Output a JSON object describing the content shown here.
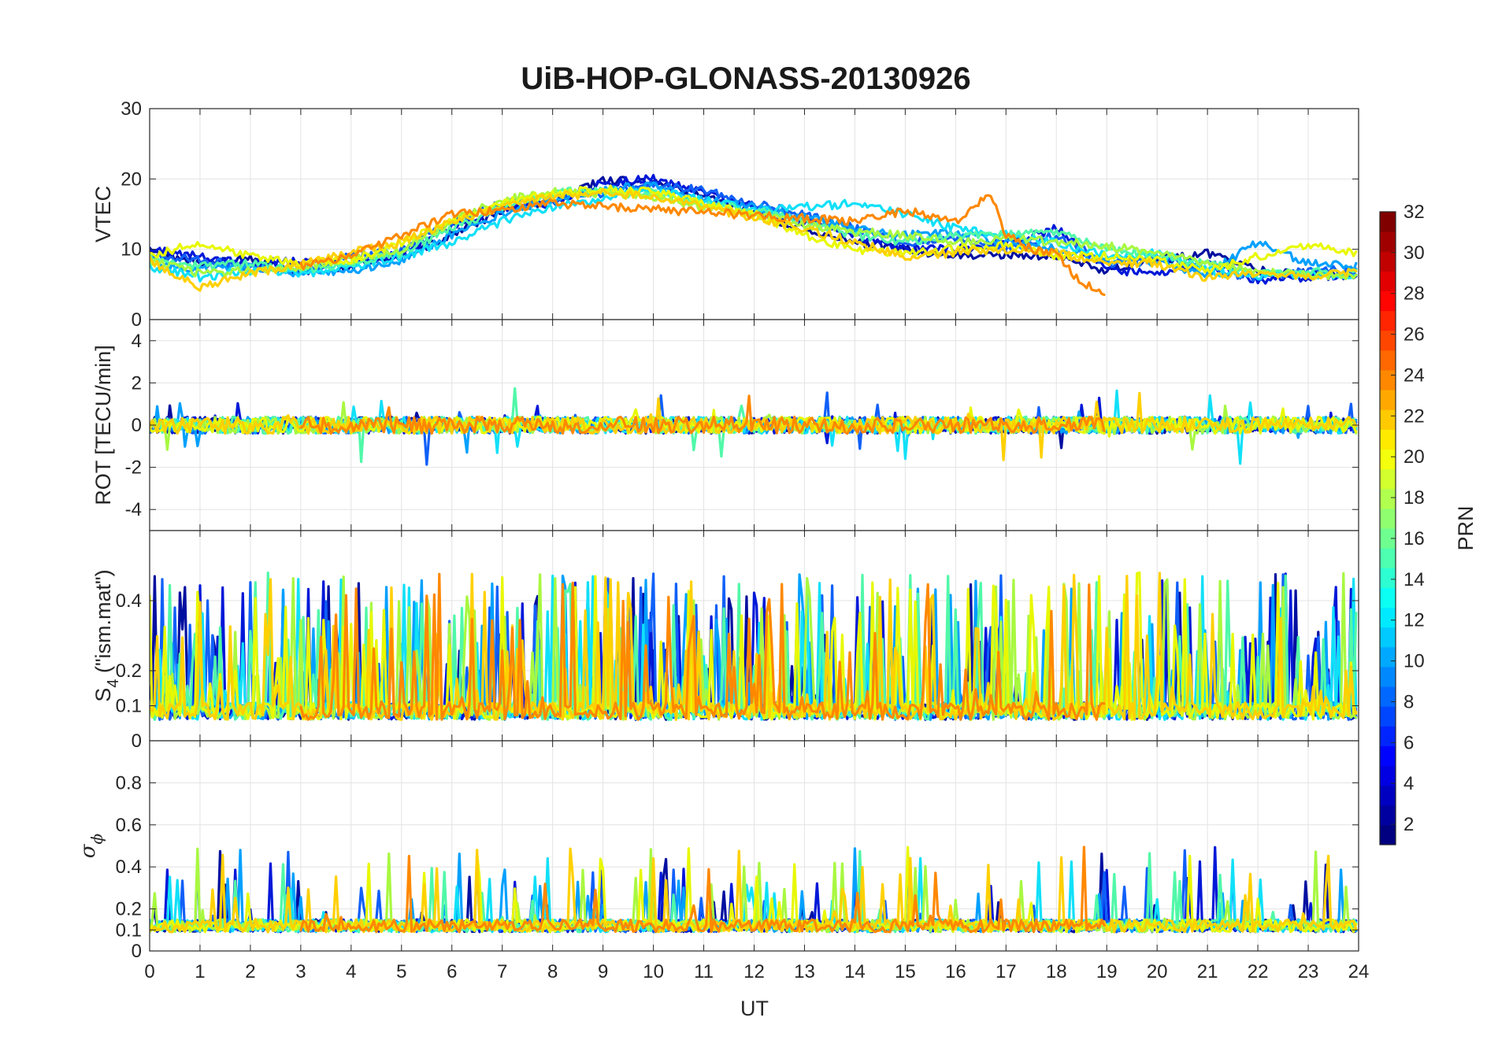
{
  "chart_data": {
    "type": "line",
    "title": "UiB-HOP-GLONASS-20130926",
    "xlabel": "UT",
    "xlim": [
      0,
      24
    ],
    "xticks": [
      0,
      1,
      2,
      3,
      4,
      5,
      6,
      7,
      8,
      9,
      10,
      11,
      12,
      13,
      14,
      15,
      16,
      17,
      18,
      19,
      20,
      21,
      22,
      23,
      24
    ],
    "grid": true,
    "panels": [
      {
        "id": "vtec",
        "ylabel": "VTEC",
        "ylim": [
          0,
          30
        ],
        "yticks": [
          0,
          10,
          20,
          30
        ]
      },
      {
        "id": "rot",
        "ylabel": "ROT [TECU/min]",
        "ylim": [
          -5,
          5
        ],
        "yticks": [
          -4,
          -2,
          0,
          2,
          4
        ]
      },
      {
        "id": "s4",
        "ylabel_main": "S",
        "ylabel_sub": "4",
        "ylabel_tail": " (\"ism.mat\")",
        "ylim": [
          0,
          0.6
        ],
        "yticks": [
          0,
          0.1,
          0.2,
          0.4
        ]
      },
      {
        "id": "sigma",
        "ylabel_main": "σ",
        "ylabel_sub": "ϕ",
        "ylim": [
          0,
          1
        ],
        "yticks": [
          0,
          0.1,
          0.2,
          0.4,
          0.6,
          0.8
        ]
      }
    ],
    "colorbar": {
      "label": "PRN",
      "range": [
        1,
        32
      ],
      "ticks": [
        2,
        4,
        6,
        8,
        10,
        12,
        14,
        16,
        18,
        20,
        22,
        24,
        26,
        28,
        30,
        32
      ],
      "colormap": "jet"
    },
    "series": [
      {
        "prn": 2,
        "color": "#000fa0",
        "vtec": [
          [
            0,
            9.5
          ],
          [
            1,
            8
          ],
          [
            2,
            8.5
          ],
          [
            3,
            7
          ],
          [
            4,
            7.5
          ],
          [
            5,
            9
          ],
          [
            6,
            12
          ],
          [
            7,
            15.5
          ],
          [
            8,
            17
          ],
          [
            9,
            19.8
          ],
          [
            10,
            19.5
          ],
          [
            11,
            17.5
          ],
          [
            12,
            15
          ],
          [
            13,
            13
          ],
          [
            14,
            11
          ],
          [
            15,
            10
          ],
          [
            16,
            9
          ],
          [
            17,
            9.2
          ],
          [
            18,
            9
          ],
          [
            19,
            7
          ],
          [
            20,
            8.5
          ],
          [
            21,
            9.5
          ],
          [
            22,
            7
          ],
          [
            23,
            6.5
          ],
          [
            24,
            6
          ]
        ]
      },
      {
        "prn": 4,
        "color": "#0018d8",
        "vtec": [
          [
            0,
            10
          ],
          [
            1,
            9
          ],
          [
            2,
            8
          ],
          [
            3,
            8.5
          ],
          [
            4,
            8
          ],
          [
            5,
            9.5
          ],
          [
            6,
            13
          ],
          [
            7,
            16
          ],
          [
            8,
            16.5
          ],
          [
            9,
            19.5
          ],
          [
            10,
            20
          ],
          [
            11,
            18
          ],
          [
            12,
            16
          ],
          [
            13,
            14
          ],
          [
            14,
            12
          ],
          [
            15,
            10
          ],
          [
            16,
            10
          ],
          [
            17,
            11
          ],
          [
            18,
            13
          ],
          [
            19,
            7
          ],
          [
            20,
            6.5
          ],
          [
            21,
            8
          ],
          [
            22,
            5.5
          ],
          [
            23,
            6
          ],
          [
            24,
            6.5
          ]
        ]
      },
      {
        "prn": 7,
        "color": "#1060f8",
        "vtec": [
          [
            0,
            9
          ],
          [
            1,
            8.5
          ],
          [
            2,
            7.5
          ],
          [
            3,
            7
          ],
          [
            4,
            9
          ],
          [
            5,
            10
          ],
          [
            6,
            14
          ],
          [
            7,
            16.5
          ],
          [
            8,
            17.5
          ],
          [
            9,
            18
          ],
          [
            10,
            19
          ],
          [
            11,
            18.5
          ],
          [
            12,
            16.5
          ],
          [
            13,
            15
          ],
          [
            14,
            13
          ],
          [
            15,
            11
          ],
          [
            16,
            11.5
          ],
          [
            17,
            10
          ],
          [
            18,
            12
          ],
          [
            19,
            8
          ],
          [
            20,
            9
          ],
          [
            21,
            7
          ],
          [
            22,
            6
          ],
          [
            23,
            7
          ],
          [
            24,
            7
          ]
        ]
      },
      {
        "prn": 10,
        "color": "#00a0ff",
        "vtec": [
          [
            0,
            8
          ],
          [
            1,
            7
          ],
          [
            2,
            7.5
          ],
          [
            3,
            6.5
          ],
          [
            4,
            7
          ],
          [
            5,
            8.5
          ],
          [
            6,
            12
          ],
          [
            7,
            15
          ],
          [
            8,
            17
          ],
          [
            9,
            18.5
          ],
          [
            10,
            19
          ],
          [
            11,
            17
          ],
          [
            12,
            16
          ],
          [
            13,
            14.5
          ],
          [
            14,
            13
          ],
          [
            15,
            12
          ],
          [
            16,
            12.5
          ],
          [
            17,
            11
          ],
          [
            18,
            10
          ],
          [
            19,
            8.5
          ],
          [
            20,
            8
          ],
          [
            21,
            6.5
          ],
          [
            22,
            11
          ],
          [
            23,
            8
          ],
          [
            24,
            7.5
          ]
        ]
      },
      {
        "prn": 12,
        "color": "#10e0f8",
        "vtec": [
          [
            0,
            7.5
          ],
          [
            1,
            6
          ],
          [
            2,
            7
          ],
          [
            3,
            6.5
          ],
          [
            4,
            7.5
          ],
          [
            5,
            9
          ],
          [
            6,
            11
          ],
          [
            7,
            14
          ],
          [
            8,
            16
          ],
          [
            9,
            17
          ],
          [
            10,
            18.5
          ],
          [
            11,
            17
          ],
          [
            12,
            15.5
          ],
          [
            13,
            16
          ],
          [
            14,
            16.5
          ],
          [
            15,
            15
          ],
          [
            16,
            13
          ],
          [
            17,
            12
          ],
          [
            18,
            11
          ],
          [
            19,
            9
          ],
          [
            20,
            9.5
          ],
          [
            21,
            7
          ],
          [
            22,
            6
          ],
          [
            23,
            6.5
          ],
          [
            24,
            6
          ]
        ]
      },
      {
        "prn": 15,
        "color": "#50f8a8",
        "vtec": [
          [
            0,
            9
          ],
          [
            1,
            7.5
          ],
          [
            2,
            8
          ],
          [
            3,
            7
          ],
          [
            4,
            8
          ],
          [
            5,
            9.5
          ],
          [
            6,
            13
          ],
          [
            7,
            16
          ],
          [
            8,
            18
          ],
          [
            9,
            18.5
          ],
          [
            10,
            18
          ],
          [
            11,
            16.5
          ],
          [
            12,
            15.5
          ],
          [
            13,
            14
          ],
          [
            14,
            12
          ],
          [
            15,
            11
          ],
          [
            16,
            12
          ],
          [
            17,
            12
          ],
          [
            18,
            12.5
          ],
          [
            19,
            10
          ],
          [
            20,
            9
          ],
          [
            21,
            8
          ],
          [
            22,
            6.5
          ],
          [
            23,
            7
          ],
          [
            24,
            6.5
          ]
        ]
      },
      {
        "prn": 17,
        "color": "#a8f840",
        "vtec": [
          [
            0,
            8.5
          ],
          [
            1,
            6.5
          ],
          [
            2,
            7
          ],
          [
            3,
            7.5
          ],
          [
            4,
            8.5
          ],
          [
            5,
            10
          ],
          [
            6,
            14
          ],
          [
            7,
            17
          ],
          [
            8,
            18.2
          ],
          [
            9,
            18
          ],
          [
            10,
            17.5
          ],
          [
            11,
            16
          ],
          [
            12,
            15
          ],
          [
            13,
            13.5
          ],
          [
            14,
            12.5
          ],
          [
            15,
            12
          ],
          [
            16,
            11
          ],
          [
            17,
            11.5
          ],
          [
            18,
            11
          ],
          [
            19,
            10.5
          ],
          [
            20,
            9.5
          ],
          [
            21,
            8
          ],
          [
            22,
            7
          ],
          [
            23,
            6.5
          ],
          [
            24,
            6
          ]
        ]
      },
      {
        "prn": 19,
        "color": "#e8f800",
        "vtec": [
          [
            0,
            9
          ],
          [
            1,
            11
          ],
          [
            2,
            9
          ],
          [
            3,
            8
          ],
          [
            4,
            8.5
          ],
          [
            5,
            11
          ],
          [
            6,
            14
          ],
          [
            7,
            16.5
          ],
          [
            8,
            18
          ],
          [
            9,
            18.5
          ],
          [
            10,
            18.2
          ],
          [
            11,
            16.5
          ],
          [
            12,
            15
          ],
          [
            13,
            12
          ],
          [
            14,
            10
          ],
          [
            15,
            9.5
          ],
          [
            16,
            10
          ],
          [
            17,
            10.5
          ],
          [
            18,
            9
          ],
          [
            19,
            9
          ],
          [
            20,
            8.5
          ],
          [
            21,
            7
          ],
          [
            22,
            9
          ],
          [
            23,
            10.5
          ],
          [
            24,
            9.5
          ]
        ]
      },
      {
        "prn": 21,
        "color": "#ffd000",
        "vtec": [
          [
            0,
            8.5
          ],
          [
            1,
            4.5
          ],
          [
            2,
            6.5
          ],
          [
            3,
            8
          ],
          [
            4,
            9.5
          ],
          [
            5,
            11
          ],
          [
            6,
            14
          ],
          [
            7,
            16
          ],
          [
            8,
            17.5
          ],
          [
            9,
            18
          ],
          [
            10,
            17.5
          ],
          [
            11,
            16
          ],
          [
            12,
            14.5
          ],
          [
            13,
            13
          ],
          [
            14,
            11
          ],
          [
            15,
            9
          ],
          [
            16,
            9.5
          ],
          [
            17,
            10
          ],
          [
            18,
            9.5
          ],
          [
            19,
            8
          ],
          [
            20,
            8
          ],
          [
            21,
            6
          ],
          [
            22,
            6.5
          ],
          [
            23,
            6
          ],
          [
            24,
            7
          ]
        ]
      },
      {
        "prn": 23,
        "color": "#ff8800",
        "vtec": [
          [
            3,
            7.5
          ],
          [
            4,
            9
          ],
          [
            5,
            12
          ],
          [
            6,
            15
          ],
          [
            7,
            15.5
          ],
          [
            8,
            16.5
          ],
          [
            14,
            14
          ],
          [
            15,
            15.5
          ],
          [
            16,
            14
          ],
          [
            16.7,
            18
          ],
          [
            17,
            12
          ],
          [
            17.5,
            10
          ],
          [
            18,
            9.5
          ],
          [
            18.5,
            5
          ],
          [
            19,
            4
          ]
        ]
      }
    ]
  }
}
